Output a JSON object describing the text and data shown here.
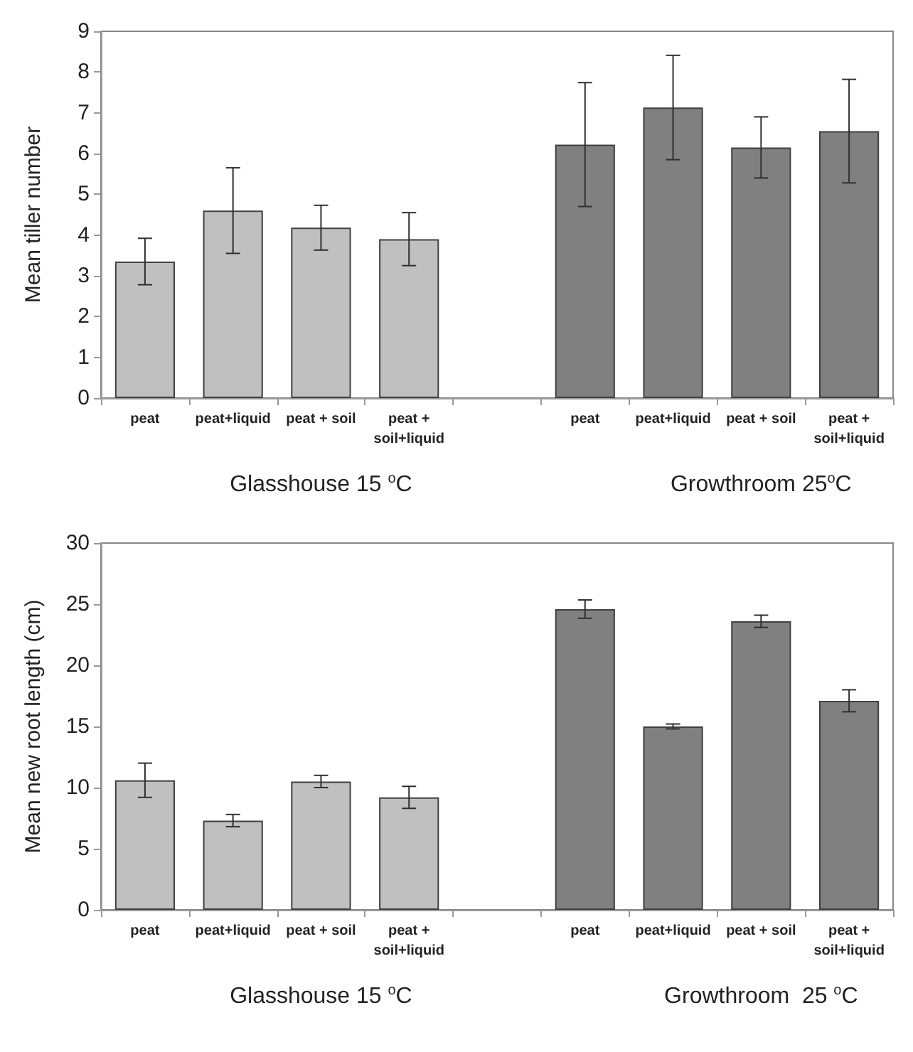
{
  "chart_data": [
    {
      "type": "bar",
      "ylabel": "Mean tiller number",
      "categories": [
        "peat",
        "peat+liquid",
        "peat + soil",
        "peat +\nsoil+liquid",
        null,
        "peat",
        "peat+liquid",
        "peat + soil",
        "peat +\nsoil+liquid"
      ],
      "values": [
        3.35,
        4.6,
        4.18,
        3.9,
        null,
        6.22,
        7.13,
        6.15,
        6.55
      ],
      "errors": [
        0.57,
        1.05,
        0.55,
        0.65,
        null,
        1.52,
        1.28,
        0.75,
        1.27
      ],
      "colors": [
        "#c0c0c0",
        "#c0c0c0",
        "#c0c0c0",
        "#c0c0c0",
        "#c0c0c0",
        "#808080",
        "#808080",
        "#808080",
        "#808080"
      ],
      "ylim": [
        0,
        9
      ],
      "yticks": [
        0,
        1,
        2,
        3,
        4,
        5,
        6,
        7,
        8,
        9
      ],
      "grid": false,
      "annotations": [
        "Glasshouse 15 $^{o}$C",
        "Growthroom 25$^{o}$C"
      ]
    },
    {
      "type": "bar",
      "ylabel": "Mean new root length (cm)",
      "categories": [
        "peat",
        "peat+liquid",
        "peat + soil",
        "peat +\nsoil+liquid",
        null,
        "peat",
        "peat+liquid",
        "peat + soil",
        "peat +\nsoil+liquid"
      ],
      "values": [
        10.6,
        7.3,
        10.5,
        9.2,
        null,
        24.6,
        15,
        23.6,
        17.1
      ],
      "errors": [
        1.4,
        0.5,
        0.5,
        0.9,
        null,
        0.75,
        0.2,
        0.5,
        0.9
      ],
      "colors": [
        "#c0c0c0",
        "#c0c0c0",
        "#c0c0c0",
        "#c0c0c0",
        "#c0c0c0",
        "#808080",
        "#808080",
        "#808080",
        "#808080"
      ],
      "ylim": [
        0,
        30
      ],
      "yticks": [
        0,
        5,
        10,
        15,
        20,
        25,
        30
      ],
      "grid": false,
      "annotations": [
        "Glasshouse 15 $^{o}$C",
        "Growthroom  25 $^{o}$C"
      ]
    }
  ]
}
